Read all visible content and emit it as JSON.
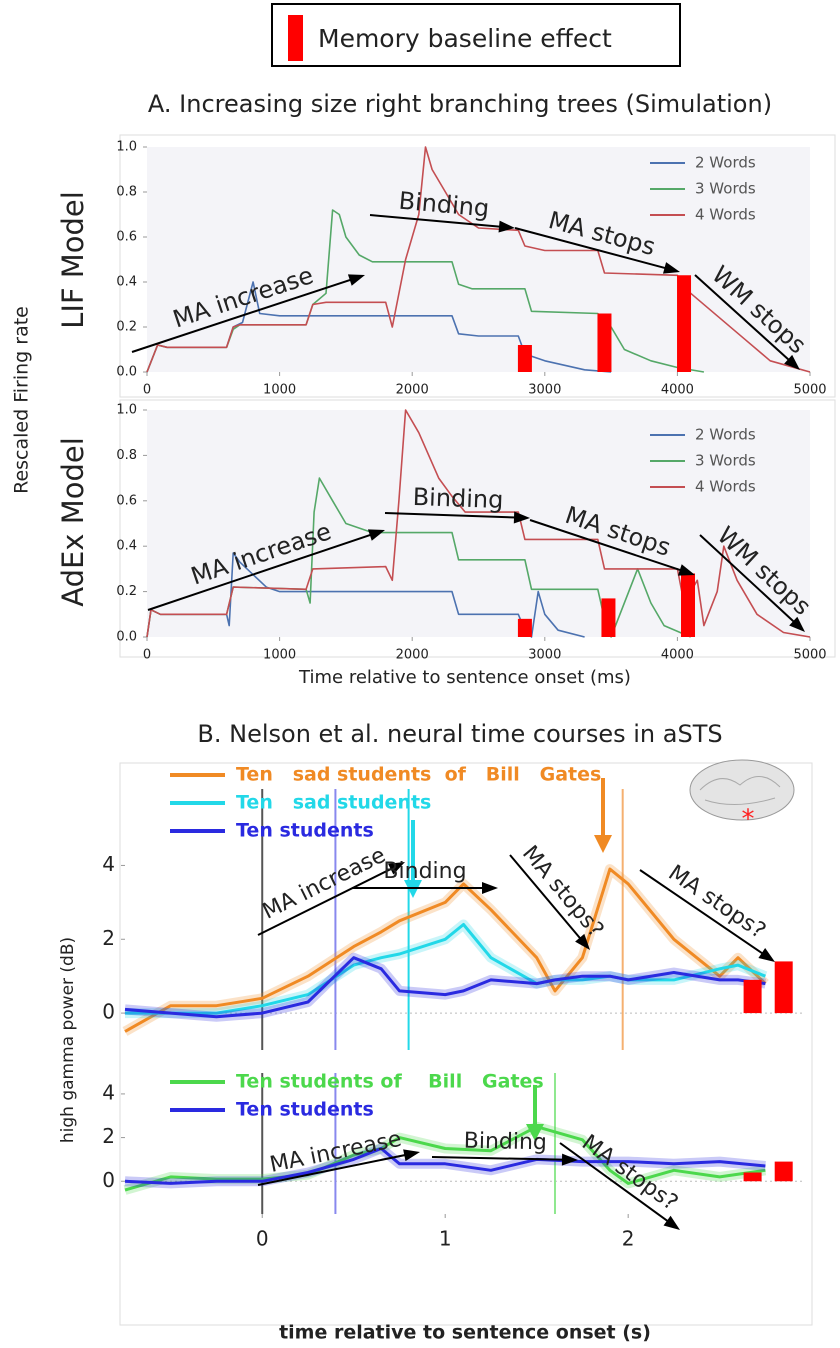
{
  "legend_label": "Memory baseline effect",
  "chart_data": [
    {
      "type": "line",
      "title": "A. Increasing size right branching trees (Simulation)",
      "ylabel": "Rescaled Firing rate",
      "panel_label": "LIF Model",
      "xlim": [
        0,
        5000
      ],
      "ylim": [
        0,
        1.0
      ],
      "xticks": [
        0,
        1000,
        2000,
        3000,
        4000,
        5000
      ],
      "yticks": [
        {
          "value": 0,
          "label": "0.0"
        },
        0.2,
        0.4,
        0.6,
        0.8,
        {
          "value": 1,
          "label": "1.0"
        }
      ],
      "series": [
        {
          "name": "2 Words",
          "color": "#4c72b0",
          "x": [
            0,
            80,
            150,
            600,
            650,
            720,
            800,
            850,
            1000,
            2300,
            2350,
            2500,
            2800,
            2850,
            3000,
            3300,
            3500
          ],
          "values": [
            0,
            0.12,
            0.11,
            0.11,
            0.2,
            0.22,
            0.4,
            0.26,
            0.25,
            0.25,
            0.17,
            0.16,
            0.16,
            0.08,
            0.05,
            0.01,
            0
          ]
        },
        {
          "name": "3 Words",
          "color": "#55a868",
          "x": [
            0,
            80,
            150,
            600,
            650,
            700,
            1200,
            1250,
            1350,
            1400,
            1450,
            1500,
            1600,
            1700,
            2300,
            2350,
            2450,
            2850,
            2900,
            3400,
            3500,
            3600,
            3800,
            4000,
            4200
          ],
          "values": [
            0,
            0.12,
            0.11,
            0.11,
            0.19,
            0.21,
            0.21,
            0.3,
            0.35,
            0.72,
            0.7,
            0.6,
            0.52,
            0.49,
            0.49,
            0.39,
            0.37,
            0.37,
            0.27,
            0.26,
            0.2,
            0.1,
            0.05,
            0.02,
            0
          ]
        },
        {
          "name": "4 Words",
          "color": "#c44e52",
          "x": [
            0,
            80,
            150,
            600,
            650,
            700,
            1200,
            1250,
            1350,
            1800,
            1850,
            1950,
            2050,
            2100,
            2150,
            2250,
            2350,
            2500,
            2800,
            2850,
            3000,
            3400,
            3450,
            4000,
            4100,
            4300,
            4500,
            4700,
            5000
          ],
          "values": [
            0,
            0.12,
            0.11,
            0.11,
            0.2,
            0.21,
            0.21,
            0.3,
            0.31,
            0.31,
            0.2,
            0.5,
            0.7,
            1.0,
            0.9,
            0.8,
            0.7,
            0.64,
            0.63,
            0.56,
            0.54,
            0.54,
            0.44,
            0.43,
            0.35,
            0.25,
            0.15,
            0.05,
            0
          ]
        }
      ],
      "bars": {
        "color": "#ff0000",
        "x": [
          2850,
          3450,
          4050
        ],
        "values": [
          0.12,
          0.26,
          0.43
        ]
      },
      "annotations": [
        "MA increase",
        "Binding",
        "MA stops",
        "WM stops"
      ]
    },
    {
      "type": "line",
      "panel_label": "AdEx Model",
      "xlabel": "Time relative to sentence onset (ms)",
      "xlim": [
        0,
        5000
      ],
      "ylim": [
        0,
        1.0
      ],
      "xticks": [
        0,
        1000,
        2000,
        3000,
        4000,
        5000
      ],
      "yticks": [
        {
          "value": 0,
          "label": "0.0"
        },
        0.2,
        0.4,
        0.6,
        0.8,
        {
          "value": 1,
          "label": "1.0"
        }
      ],
      "series": [
        {
          "name": "2 Words",
          "color": "#4c72b0",
          "x": [
            0,
            30,
            100,
            600,
            620,
            650,
            700,
            900,
            1000,
            2300,
            2350,
            2800,
            2850,
            2900,
            2950,
            3000,
            3100,
            3300
          ],
          "values": [
            0,
            0.12,
            0.1,
            0.1,
            0.05,
            0.37,
            0.33,
            0.22,
            0.2,
            0.2,
            0.1,
            0.1,
            0.03,
            0,
            0.2,
            0.1,
            0.03,
            0
          ]
        },
        {
          "name": "3 Words",
          "color": "#55a868",
          "x": [
            0,
            30,
            100,
            600,
            650,
            1200,
            1230,
            1260,
            1300,
            1400,
            1500,
            1700,
            2300,
            2350,
            2850,
            2900,
            3400,
            3450,
            3500,
            3700,
            3800,
            3900,
            4100
          ],
          "values": [
            0,
            0.12,
            0.1,
            0.1,
            0.22,
            0.21,
            0.15,
            0.55,
            0.7,
            0.6,
            0.5,
            0.46,
            0.46,
            0.34,
            0.34,
            0.21,
            0.21,
            0.08,
            0,
            0.3,
            0.15,
            0.05,
            0
          ]
        },
        {
          "name": "4 Words",
          "color": "#c44e52",
          "x": [
            0,
            30,
            100,
            600,
            650,
            1200,
            1250,
            1800,
            1850,
            1900,
            1950,
            2050,
            2200,
            2300,
            2400,
            2800,
            2850,
            3400,
            3450,
            4000,
            4050,
            4150,
            4200,
            4300,
            4350,
            4450,
            4600,
            4800,
            5000
          ],
          "values": [
            0,
            0.12,
            0.1,
            0.1,
            0.22,
            0.21,
            0.3,
            0.31,
            0.25,
            0.6,
            1.0,
            0.9,
            0.7,
            0.62,
            0.55,
            0.55,
            0.43,
            0.43,
            0.3,
            0.3,
            0.15,
            0.25,
            0.05,
            0.2,
            0.4,
            0.25,
            0.1,
            0.02,
            0
          ]
        }
      ],
      "bars": {
        "color": "#ff0000",
        "x": [
          2850,
          3480,
          4080
        ],
        "values": [
          0.08,
          0.17,
          0.28
        ]
      },
      "annotations": [
        "MA increase",
        "Binding",
        "MA stops",
        "WM stops"
      ]
    },
    {
      "type": "line",
      "title": "B. Nelson et al. neural time courses in aSTS",
      "ylabel": "high gamma power (dB)",
      "xlim": [
        -0.75,
        2.95
      ],
      "ylim": [
        -1,
        5.8
      ],
      "yticks": [
        0,
        2,
        4
      ],
      "x": [
        -0.75,
        -0.5,
        -0.25,
        0,
        0.25,
        0.5,
        0.65,
        0.75,
        1.0,
        1.1,
        1.25,
        1.5,
        1.6,
        1.75,
        1.9,
        2.0,
        2.25,
        2.5,
        2.6,
        2.75
      ],
      "series": [
        {
          "name": "Ten   sad students  of   Bill   Gates",
          "color": "#f08a24",
          "values": [
            -0.5,
            0.2,
            0.2,
            0.4,
            1.0,
            1.8,
            2.2,
            2.5,
            3.0,
            3.5,
            2.8,
            1.5,
            0.6,
            1.5,
            3.9,
            3.5,
            2.0,
            1.0,
            1.5,
            0.8
          ]
        },
        {
          "name": "Ten   sad students",
          "color": "#22d8e8",
          "values": [
            0,
            0,
            0,
            0.2,
            0.5,
            1.3,
            1.5,
            1.6,
            2.0,
            2.4,
            1.5,
            0.8,
            0.9,
            0.9,
            1.0,
            0.9,
            0.9,
            1.2,
            1.3,
            1.0
          ]
        },
        {
          "name": "Ten students",
          "color": "#2a2ae0",
          "values": [
            0.1,
            0,
            -0.1,
            0,
            0.3,
            1.5,
            1.2,
            0.6,
            0.5,
            0.6,
            0.9,
            0.8,
            0.9,
            1.0,
            1.0,
            0.9,
            1.1,
            0.9,
            0.9,
            0.8
          ]
        }
      ],
      "vlines": {
        "x": [
          0,
          0.4,
          0.8,
          1.97
        ],
        "colors": [
          "#555555",
          "#8888ee",
          "#22d8e8",
          "#f5b070"
        ]
      },
      "bars": {
        "color": "#ff0000",
        "x": [
          2.68,
          2.85
        ],
        "values": [
          0.9,
          1.4
        ]
      },
      "annotations": [
        "MA increase",
        "Binding",
        "MA stops?",
        "MA stops?"
      ]
    },
    {
      "type": "line",
      "xlabel": "time relative to sentence onset (s)",
      "xlim": [
        -0.75,
        2.95
      ],
      "ylim": [
        -1.5,
        4.5
      ],
      "xticks": [
        0,
        1,
        2
      ],
      "yticks": [
        0,
        2,
        4
      ],
      "x": [
        -0.75,
        -0.5,
        -0.25,
        0,
        0.25,
        0.5,
        0.65,
        0.75,
        1.0,
        1.25,
        1.5,
        1.75,
        1.9,
        2.0,
        2.25,
        2.5,
        2.75
      ],
      "series": [
        {
          "name": "Ten students of    Bill   Gates",
          "color": "#4cd84c",
          "values": [
            -0.4,
            0.2,
            0.1,
            0.1,
            0.3,
            1.2,
            1.5,
            2.0,
            1.5,
            1.4,
            2.5,
            1.9,
            0.5,
            -0.1,
            0.5,
            0.2,
            0.5
          ]
        },
        {
          "name": "Ten students",
          "color": "#2a2ae0",
          "values": [
            0,
            -0.1,
            0,
            0,
            0.4,
            1.0,
            1.5,
            0.8,
            0.8,
            0.5,
            1.0,
            0.9,
            0.9,
            0.9,
            0.8,
            0.9,
            0.7
          ]
        }
      ],
      "vlines": {
        "x": [
          0,
          0.4,
          1.6
        ],
        "colors": [
          "#555555",
          "#8888ee",
          "#8fe88f"
        ]
      },
      "bars": {
        "color": "#ff0000",
        "x": [
          2.68,
          2.85
        ],
        "values": [
          0.4,
          0.9
        ]
      },
      "annotations": [
        "MA increase",
        "Binding",
        "MA stops?"
      ]
    }
  ]
}
